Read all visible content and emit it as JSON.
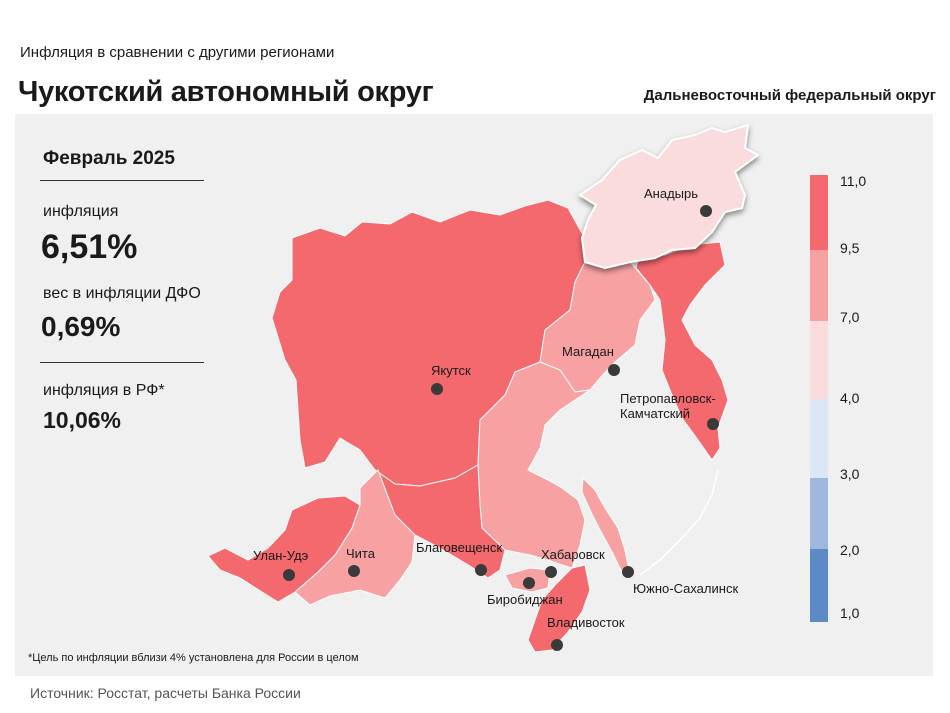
{
  "header": {
    "subtitle": "Инфляция  в сравнении  с другими  регионами",
    "title": "Чукотский автономный округ",
    "district": "Дальневосточный  федеральный  округ"
  },
  "stats": {
    "period": "Февраль 2025",
    "inflation_label": "инфляция",
    "inflation_value": "6,51%",
    "weight_label": "вес в инфляции  ДФО",
    "weight_value": "0,69%",
    "rf_label": "инфляция  в РФ*",
    "rf_value": "10,06%"
  },
  "footnote": "*Цель по инфляции вблизи 4%  установлена  для  России в  целом",
  "source": "Источник: Росстат, расчеты  Банка  России",
  "legend": {
    "bands": [
      {
        "from": "9,5",
        "to": "11,0",
        "color": "#f4696e"
      },
      {
        "from": "7,0",
        "to": "9,5",
        "color": "#f7a1a3"
      },
      {
        "from": "4,0",
        "to": "7,0",
        "color": "#fadbde"
      },
      {
        "from": "3,0",
        "to": "4,0",
        "color": "#dce6f4"
      },
      {
        "from": "2,0",
        "to": "3,0",
        "color": "#9db8dc"
      },
      {
        "from": "1,0",
        "to": "2,0",
        "color": "#5b8ac6"
      }
    ],
    "ticks": [
      "11,0",
      "9,5",
      "7,0",
      "4,0",
      "3,0",
      "2,0",
      "1,0"
    ]
  },
  "cities": {
    "anadyr": "Анадырь",
    "yakutsk": "Якутск",
    "magadan": "Магадан",
    "petro1": "Петропавловск-",
    "petro2": "Камчатский",
    "ulanude": "Улан-Удэ",
    "chita": "Чита",
    "blagoveshchensk": "Благовещенск",
    "khabarovsk": "Хабаровск",
    "birobidzhan": "Биробиджан",
    "yuzhno": "Южно-Сахалинск",
    "vladivostok": "Владивосток"
  }
}
